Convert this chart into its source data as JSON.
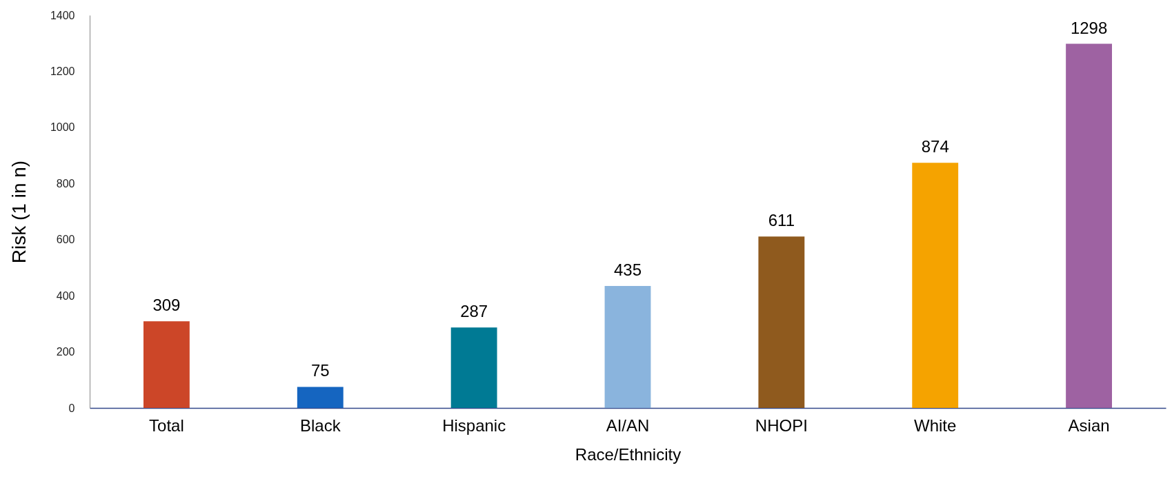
{
  "chart_data": {
    "type": "bar",
    "xlabel": "Race/Ethnicity",
    "ylabel": "Risk (1 in n)",
    "categories": [
      "Total",
      "Black",
      "Hispanic",
      "AI/AN",
      "NHOPI",
      "White",
      "Asian"
    ],
    "values": [
      309,
      75,
      287,
      435,
      611,
      874,
      1298
    ],
    "colors": [
      "#cc4628",
      "#1565c0",
      "#007a94",
      "#8ab4dd",
      "#8f5a1e",
      "#f5a300",
      "#9e62a2"
    ],
    "ylim": [
      0,
      1400
    ],
    "yticks": [
      0,
      200,
      400,
      600,
      800,
      1000,
      1200,
      1400
    ],
    "data_labels": true,
    "grid": false
  }
}
